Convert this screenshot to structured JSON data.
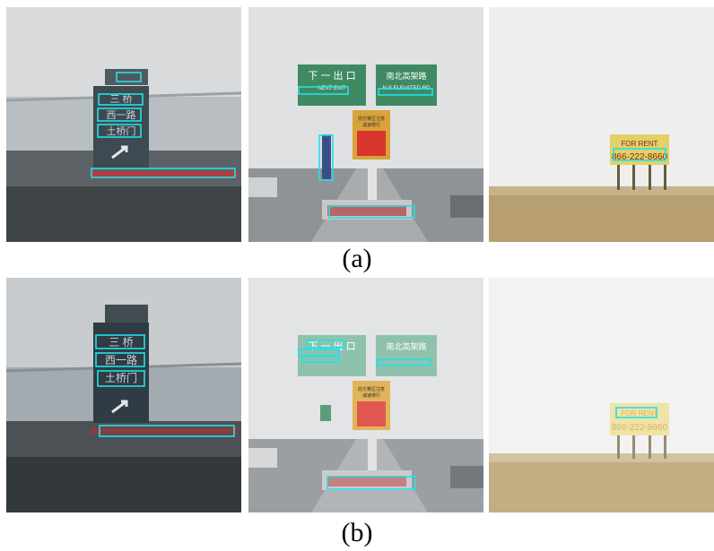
{
  "rows": [
    {
      "label": "(a)",
      "panels": [
        {
          "name": "gate-sign-scene",
          "sign_text": [
            "三 桥",
            "西一路",
            "土桥门"
          ]
        },
        {
          "name": "expressway-scene",
          "sign_text": [
            "下 一 出 口",
            "NEXT EXIT",
            "南北高架路",
            "N-S ELEVATED RD",
            "前方雾区注意",
            "减速慢行"
          ]
        },
        {
          "name": "billboard-scene",
          "sign_text": [
            "FOR RENT",
            "866-222-8660"
          ]
        }
      ]
    },
    {
      "label": "(b)",
      "panels": [
        {
          "name": "gate-sign-scene",
          "sign_text": [
            "三 桥",
            "西一路",
            "土桥门"
          ]
        },
        {
          "name": "expressway-scene",
          "sign_text": [
            "下 一 出 口",
            "南北高架路",
            "前方雾区注意",
            "减速慢行"
          ]
        },
        {
          "name": "billboard-scene",
          "sign_text": [
            "FOR RENT",
            "866-222-8660"
          ]
        }
      ]
    }
  ],
  "colors": {
    "box": "#24e0e8",
    "fog": "#d9dde0"
  }
}
